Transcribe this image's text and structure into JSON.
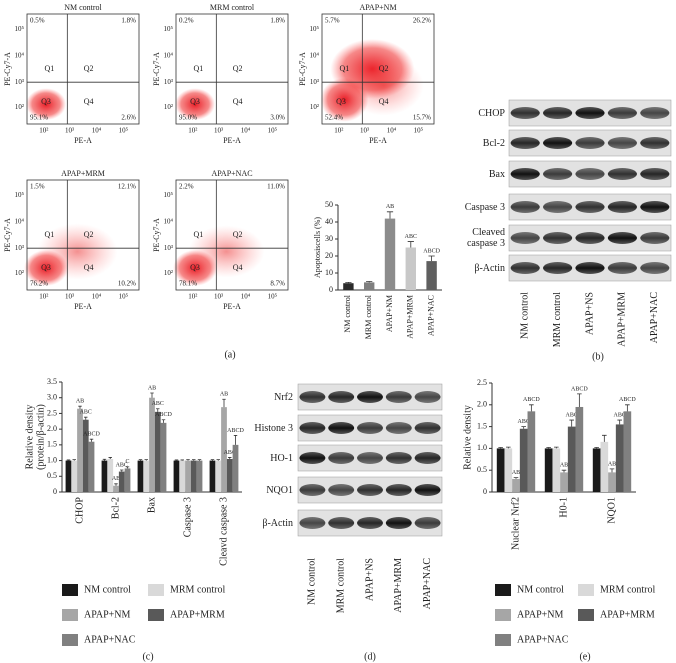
{
  "panel_labels": [
    "(a)",
    "(b)",
    "(c)",
    "(d)",
    "(e)"
  ],
  "flow": {
    "x_label": "PE-A",
    "y_label": "PE-Cy7-A",
    "quadrants": [
      "Q1",
      "Q2",
      "Q3",
      "Q4"
    ],
    "ticks": [
      "10²",
      "10³",
      "10⁴",
      "10⁵"
    ],
    "plots": [
      {
        "title": "NM control",
        "q1": "0.5%",
        "q2": "1.8%",
        "q3": "95.1%",
        "q4": "2.6%"
      },
      {
        "title": "MRM control",
        "q1": "0.2%",
        "q2": "1.8%",
        "q3": "95.0%",
        "q4": "3.0%"
      },
      {
        "title": "APAP+NM",
        "q1": "5.7%",
        "q2": "26.2%",
        "q3": "52.4%",
        "q4": "15.7%"
      },
      {
        "title": "APAP+MRM",
        "q1": "1.5%",
        "q2": "12.1%",
        "q3": "76.2%",
        "q4": "10.2%"
      },
      {
        "title": "APAP+NAC",
        "q1": "2.2%",
        "q2": "11.0%",
        "q3": "78.1%",
        "q4": "8.7%"
      }
    ]
  },
  "blots": [
    {
      "rows": [
        "CHOP",
        "Bcl-2",
        "Bax",
        "Caspase 3",
        "Cleaved caspase 3",
        "β-Actin"
      ],
      "columns": [
        "NM control",
        "MRM control",
        "APAP+NS",
        "APAP+MRM",
        "APAP+NAC"
      ]
    },
    {
      "rows": [
        "Nrf2",
        "Histone 3",
        "HO-1",
        "NQO1",
        "β-Actin"
      ],
      "columns": [
        "NM control",
        "MRM control",
        "APAP+NS",
        "APAP+MRM",
        "APAP+NAC"
      ]
    }
  ],
  "chart_data": [
    {
      "type": "bar",
      "y_label": [
        "Apoptosiscells (%)"
      ],
      "categories": [
        "NM control",
        "MRM control",
        "APAP+NM",
        "APAP+MRM",
        "APAP+NAC"
      ],
      "values": [
        4,
        4.5,
        42,
        25,
        17
      ],
      "errors": [
        0.5,
        0.5,
        4,
        3.5,
        3
      ],
      "colors": [
        "#2b2b2b",
        "#7f7f7f",
        "#8c8c8c",
        "#c8c8c8",
        "#5f5f5f"
      ],
      "annotations": [
        null,
        null,
        "AB",
        "ABC",
        "ABCD"
      ],
      "ylim": [
        0,
        50
      ],
      "yticks": [
        0,
        10,
        20,
        30,
        40,
        50
      ]
    },
    {
      "type": "grouped-bar",
      "y_label": [
        "Relative density",
        "(protein/β-actin)"
      ],
      "categories": [
        "CHOP",
        "Bcl-2",
        "Bax",
        "Caspase 3",
        "Cleavd caspase 3"
      ],
      "series": [
        {
          "name": "NM control",
          "color": "#1a1a1a",
          "values": [
            1,
            1,
            1,
            1,
            1
          ],
          "errors": [
            0.02,
            0.04,
            0.03,
            0.02,
            0.03
          ],
          "annotations": [
            null,
            null,
            null,
            null,
            null
          ]
        },
        {
          "name": "MRM control",
          "color": "#d9d9d9",
          "values": [
            1,
            1.05,
            1,
            1,
            1
          ],
          "errors": [
            0.03,
            0.05,
            0.03,
            0.02,
            0.03
          ],
          "annotations": [
            null,
            null,
            null,
            null,
            null
          ]
        },
        {
          "name": "APAP+NM",
          "color": "#a6a6a6",
          "values": [
            2.65,
            0.2,
            3.0,
            1,
            2.7
          ],
          "errors": [
            0.08,
            0.06,
            0.15,
            0.03,
            0.25
          ],
          "annotations": [
            "AB",
            "AB",
            "AB",
            null,
            "AB"
          ]
        },
        {
          "name": "APAP+MRM",
          "color": "#595959",
          "values": [
            2.3,
            0.65,
            2.55,
            1,
            1.05
          ],
          "errors": [
            0.08,
            0.05,
            0.1,
            0.03,
            0.05
          ],
          "annotations": [
            "ABC",
            "ABC",
            "ABC",
            null,
            "ABC"
          ]
        },
        {
          "name": "APAP+NAC",
          "color": "#808080",
          "values": [
            1.6,
            0.75,
            2.2,
            1,
            1.5
          ],
          "errors": [
            0.08,
            0.05,
            0.1,
            0.03,
            0.3
          ],
          "annotations": [
            "ABCD",
            "C",
            "ABCD",
            null,
            "ABCD"
          ]
        }
      ],
      "ylim": [
        0,
        3.5
      ],
      "yticks": [
        0,
        0.5,
        {
          "value": 1,
          "label": "1.0"
        },
        1.5,
        {
          "value": 2,
          "label": "2.0"
        },
        2.5,
        {
          "value": 3,
          "label": "3.0"
        },
        3.5
      ]
    },
    {
      "type": "grouped-bar",
      "y_label": [
        "Relative density"
      ],
      "categories": [
        "Nuclear Nrf2",
        "H0-1",
        "NQO1"
      ],
      "series": [
        {
          "name": "NM control",
          "color": "#1a1a1a",
          "values": [
            1,
            1,
            1
          ],
          "errors": [
            0.02,
            0.02,
            0.02
          ],
          "annotations": [
            null,
            null,
            null
          ]
        },
        {
          "name": "MRM control",
          "color": "#d9d9d9",
          "values": [
            1,
            1,
            1.15
          ],
          "errors": [
            0.03,
            0.03,
            0.15
          ],
          "annotations": [
            null,
            null,
            null
          ]
        },
        {
          "name": "APAP+NM",
          "color": "#a6a6a6",
          "values": [
            0.3,
            0.45,
            0.45
          ],
          "errors": [
            0.03,
            0.05,
            0.08
          ],
          "annotations": [
            "AB",
            "AB",
            "AB"
          ]
        },
        {
          "name": "APAP+MRM",
          "color": "#595959",
          "values": [
            1.45,
            1.5,
            1.55
          ],
          "errors": [
            0.05,
            0.15,
            0.1
          ],
          "annotations": [
            "ABC",
            "ABC",
            "ABC"
          ]
        },
        {
          "name": "APAP+NAC",
          "color": "#808080",
          "values": [
            1.85,
            1.95,
            1.85
          ],
          "errors": [
            0.15,
            0.3,
            0.15
          ],
          "annotations": [
            "ABCD",
            "ABCD",
            "ABCD"
          ]
        }
      ],
      "ylim": [
        0,
        2.5
      ],
      "yticks": [
        0,
        0.5,
        {
          "value": 1,
          "label": "1.0"
        },
        1.5,
        {
          "value": 2,
          "label": "2.0"
        },
        2.5
      ]
    }
  ]
}
